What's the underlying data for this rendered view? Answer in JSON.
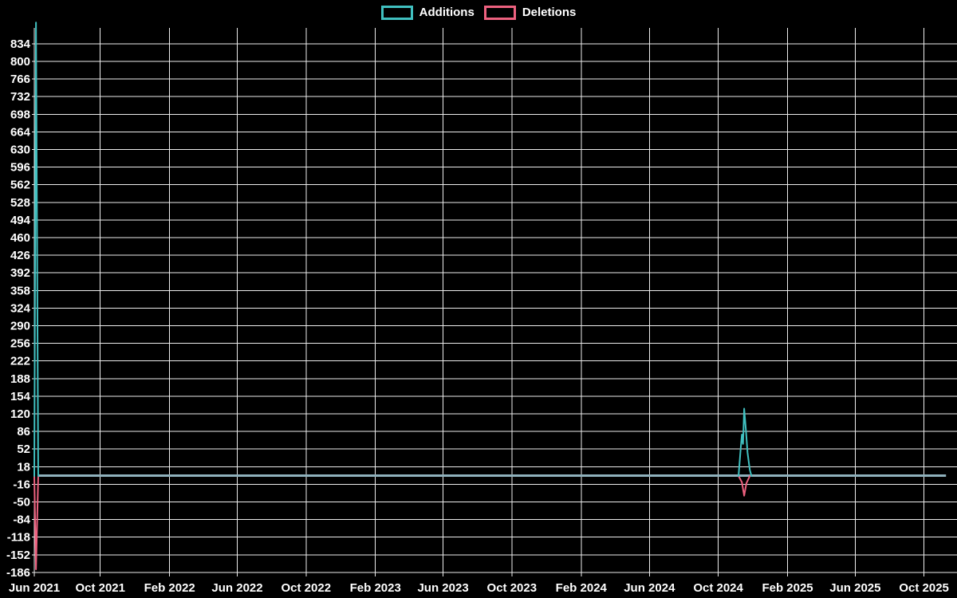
{
  "legend": {
    "items": [
      {
        "label": "Additions",
        "color": "#40C0C0"
      },
      {
        "label": "Deletions",
        "color": "#ED617F"
      }
    ]
  },
  "chart_data": {
    "type": "line",
    "x_axis_kind": "time",
    "x_range": [
      "2021-06-06",
      "2025-11-09"
    ],
    "ylim": [
      -186,
      880
    ],
    "grid": true,
    "legend_position": "top-center",
    "colors": {
      "background": "#000000",
      "grid": "#EDEDED",
      "text": "#FFFFFF",
      "zero_line": "#8FB1BC",
      "additions": "#40C0C0",
      "deletions": "#ED617F"
    },
    "y_ticks": [
      834,
      800,
      766,
      732,
      698,
      664,
      630,
      596,
      562,
      528,
      494,
      460,
      426,
      392,
      358,
      324,
      290,
      256,
      222,
      188,
      154,
      120,
      86,
      52,
      18,
      -16,
      -50,
      -84,
      -118,
      -152,
      -186
    ],
    "x_ticks": [
      {
        "label": "Jun 2021",
        "date": "2021-06-06"
      },
      {
        "label": "Oct 2021",
        "date": "2021-10-01"
      },
      {
        "label": "Feb 2022",
        "date": "2022-02-01"
      },
      {
        "label": "Jun 2022",
        "date": "2022-06-01"
      },
      {
        "label": "Oct 2022",
        "date": "2022-10-01"
      },
      {
        "label": "Feb 2023",
        "date": "2023-02-01"
      },
      {
        "label": "Jun 2023",
        "date": "2023-06-01"
      },
      {
        "label": "Oct 2023",
        "date": "2023-10-01"
      },
      {
        "label": "Feb 2024",
        "date": "2024-02-01"
      },
      {
        "label": "Jun 2024",
        "date": "2024-06-01"
      },
      {
        "label": "Oct 2024",
        "date": "2024-10-01"
      },
      {
        "label": "Feb 2025",
        "date": "2025-02-01"
      },
      {
        "label": "Jun 2025",
        "date": "2025-06-01"
      },
      {
        "label": "Oct 2025",
        "date": "2025-10-01"
      }
    ],
    "series": [
      {
        "name": "Additions",
        "color": "#40C0C0",
        "points": [
          [
            "2021-06-06",
            0
          ],
          [
            "2021-06-09",
            875
          ],
          [
            "2021-06-13",
            0
          ],
          [
            "2024-11-06",
            0
          ],
          [
            "2024-11-10",
            55
          ],
          [
            "2024-11-12",
            80
          ],
          [
            "2024-11-14",
            62
          ],
          [
            "2024-11-16",
            130
          ],
          [
            "2024-11-19",
            90
          ],
          [
            "2024-11-22",
            45
          ],
          [
            "2024-11-26",
            12
          ],
          [
            "2024-11-29",
            0
          ],
          [
            "2025-11-09",
            0
          ]
        ]
      },
      {
        "name": "Deletions",
        "color": "#ED617F",
        "points": [
          [
            "2021-06-06",
            0
          ],
          [
            "2021-06-09",
            -180
          ],
          [
            "2021-06-13",
            0
          ],
          [
            "2024-11-06",
            0
          ],
          [
            "2024-11-12",
            -12
          ],
          [
            "2024-11-16",
            -38
          ],
          [
            "2024-11-20",
            -14
          ],
          [
            "2024-11-26",
            0
          ],
          [
            "2025-11-09",
            0
          ]
        ]
      }
    ]
  }
}
